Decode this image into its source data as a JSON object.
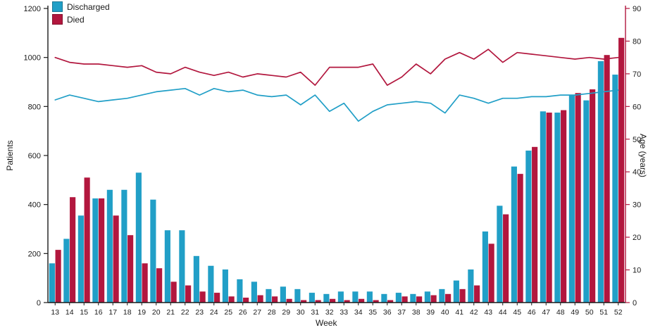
{
  "chart_data": {
    "type": "bar",
    "subtype": "grouped-bars-with-overlaid-lines",
    "title": "",
    "x_label": "Week",
    "categories": [
      "13",
      "14",
      "15",
      "16",
      "17",
      "18",
      "19",
      "20",
      "21",
      "22",
      "23",
      "24",
      "25",
      "26",
      "27",
      "28",
      "29",
      "30",
      "31",
      "32",
      "33",
      "34",
      "35",
      "36",
      "37",
      "38",
      "39",
      "40",
      "41",
      "42",
      "43",
      "44",
      "45",
      "46",
      "47",
      "48",
      "49",
      "50",
      "51",
      "52"
    ],
    "left_axis": {
      "label": "Patients",
      "min": 0,
      "max": 1200,
      "step": 200
    },
    "right_axis": {
      "label": "Age (years)",
      "min": 0,
      "max": 90,
      "step": 10
    },
    "colors": {
      "discharged": "#219fc7",
      "died": "#b2173e",
      "axis": "#1a1a1a",
      "right_axis_line": "#b2173e"
    },
    "legend": [
      {
        "label": "Discharged",
        "color": "#219fc7"
      },
      {
        "label": "Died",
        "color": "#b2173e"
      }
    ],
    "bar_series": [
      {
        "name": "Discharged",
        "axis": "left",
        "color": "#219fc7",
        "values": [
          160,
          260,
          355,
          425,
          460,
          460,
          530,
          420,
          295,
          295,
          190,
          150,
          135,
          95,
          85,
          55,
          65,
          55,
          40,
          35,
          45,
          45,
          45,
          35,
          40,
          35,
          45,
          55,
          90,
          135,
          290,
          395,
          555,
          620,
          780,
          775,
          845,
          825,
          985,
          930
        ]
      },
      {
        "name": "Died",
        "axis": "left",
        "color": "#b2173e",
        "values": [
          215,
          430,
          510,
          425,
          355,
          275,
          160,
          140,
          85,
          70,
          45,
          40,
          25,
          20,
          30,
          25,
          15,
          10,
          10,
          15,
          10,
          15,
          10,
          10,
          25,
          25,
          30,
          35,
          55,
          70,
          240,
          360,
          525,
          635,
          775,
          785,
          855,
          870,
          1010,
          1080
        ]
      }
    ],
    "line_series": [
      {
        "name": "Discharged age",
        "axis": "right",
        "color": "#219fc7",
        "values": [
          62,
          63.5,
          62.5,
          61.5,
          62,
          62.5,
          63.5,
          64.5,
          65,
          65.5,
          63.5,
          65.5,
          64.5,
          65,
          63.5,
          63,
          63.5,
          60.5,
          63.5,
          58.5,
          61,
          55.5,
          58.5,
          60.5,
          61,
          61.5,
          61,
          58,
          63.5,
          62.5,
          61,
          62.5,
          62.5,
          63,
          63,
          63.5,
          63.5,
          64,
          64.5,
          65
        ]
      },
      {
        "name": "Died age",
        "axis": "right",
        "color": "#b2173e",
        "values": [
          75,
          73.5,
          73,
          73,
          72.5,
          72,
          72.5,
          70.5,
          70,
          72,
          70.5,
          69.5,
          70.5,
          69,
          70,
          69.5,
          69,
          70.5,
          66.5,
          72,
          72,
          72,
          73,
          66.5,
          69,
          73,
          70,
          74.5,
          76.5,
          74.5,
          77.5,
          73.5,
          76.5,
          76,
          75.5,
          75,
          74.5,
          75,
          74.5,
          75
        ]
      }
    ],
    "grid": "off",
    "legend_position": "top-left-inside"
  }
}
